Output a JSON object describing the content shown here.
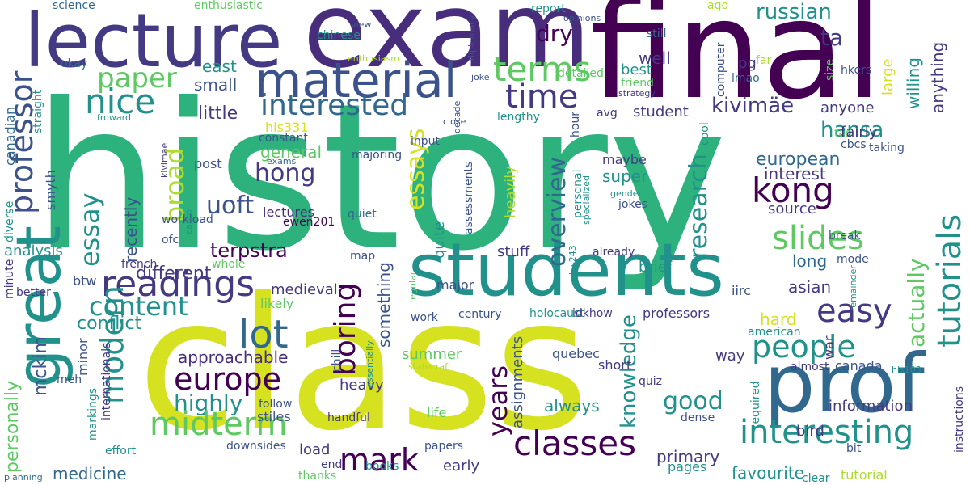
{
  "palette": {
    "dark_purple": "#440154",
    "indigo": "#3b528b",
    "slate_blue": "#31688e",
    "teal": "#21918c",
    "green": "#2db27d",
    "light_green": "#5ec962",
    "yellow_green": "#addc30",
    "yellow": "#d6e11f",
    "violet": "#472d7b",
    "navy": "#443983"
  },
  "words": {
    "history": "history",
    "class": "class",
    "final": "final",
    "exam": "exam",
    "lecture": "lecture",
    "students": "students",
    "prof": "prof",
    "great": "great",
    "material": "material",
    "professor": "professor",
    "paper": "paper",
    "nice": "nice",
    "terms": "terms",
    "time": "time",
    "interested": "interested",
    "russian": "russian",
    "ta": "ta",
    "dry": "dry",
    "hong": "hong",
    "kong": "kong",
    "slides": "slides",
    "research": "research",
    "tutorials": "tutorials",
    "kivimae_accent": "kivimäe",
    "hansa": "hansa",
    "european": "european",
    "interest": "interest",
    "readings": "readings",
    "content": "content",
    "lot": "lot",
    "europe": "europe",
    "modern": "modern",
    "boring": "boring",
    "essays": "essays",
    "essay": "essay",
    "broad": "broad",
    "uoft": "uoft",
    "overview": "overview",
    "people": "people",
    "easy": "easy",
    "actually": "actually",
    "midterm": "midterm",
    "mark": "mark",
    "classes": "classes",
    "interesting": "interesting",
    "years": "years",
    "knowledge": "knowledge",
    "good": "good",
    "highly": "highly",
    "approachable": "approachable",
    "terpstra": "terpstra",
    "conflict": "conflict",
    "mckim": "mckim",
    "personally": "personally",
    "medicine": "medicine",
    "primary": "primary",
    "favourite": "favourite",
    "tutorial": "tutorial",
    "science": "science",
    "enthusiastic": "enthusiastic",
    "report": "report",
    "opinions": "opinions",
    "ago": "ago",
    "still": "still",
    "pg": "pg",
    "hkers": "hkers",
    "okay": "okay",
    "diplomacy": "diplomacy",
    "view": "view",
    "chinese": "chinese",
    "enthusiasm": "enthusiasm",
    "east": "east",
    "detailed": "detailed",
    "computer": "computer",
    "far": "far",
    "size": "size",
    "lmao": "lmao",
    "large": "large",
    "willing": "willing",
    "anything": "anything",
    "well": "well",
    "best": "best",
    "friend": "friend",
    "strategy": "strategy",
    "joke": "joke",
    "decade": "decade",
    "straight": "straight",
    "small": "small",
    "little": "little",
    "his331": "his331",
    "student": "student",
    "avg": "avg",
    "hour": "hour",
    "cool": "cool",
    "tas": "tas",
    "cbcs": "cbcs",
    "taking": "taking",
    "fairly": "fairly",
    "anyone": "anyone",
    "froward": "froward",
    "close": "close",
    "lengthy": "lengthy",
    "canadian": "canadian",
    "constant": "constant",
    "input": "input",
    "general": "general",
    "exams": "exams",
    "majoring": "majoring",
    "post": "post",
    "super": "super",
    "maybe": "maybe",
    "kivimae": "kivimae",
    "smyth": "smyth",
    "assessments": "assessments",
    "personal": "personal",
    "specialized": "specialized",
    "gender": "gender",
    "jokes": "jokes",
    "source": "source",
    "diverse": "diverse",
    "workload": "workload",
    "canto": "canto",
    "lectures": "lectures",
    "ewen201": "ewen201",
    "quiet": "quiet",
    "quite": "quite",
    "heavily": "heavily",
    "something": "something",
    "break": "break",
    "ofc": "ofc",
    "whole": "whole",
    "analysis": "analysis",
    "french": "french",
    "recently": "recently",
    "map": "map",
    "major": "major",
    "stuff": "stuff",
    "already": "already",
    "his243": "his243",
    "brief": "brief",
    "long": "long",
    "mode": "mode",
    "different": "different",
    "medieval": "medieval",
    "minute": "minute",
    "better": "better",
    "btw": "btw",
    "likely": "likely",
    "regular": "regular",
    "iirc": "iirc",
    "asian": "asian",
    "remainder": "remainder",
    "work": "work",
    "century": "century",
    "holocaust": "holocaust",
    "idkhow": "idkhow",
    "professors": "professors",
    "hard": "hard",
    "american": "american",
    "war": "war",
    "instructions": "instructions",
    "minor": "minor",
    "internationals": "internationals",
    "essentially": "essentially",
    "chill": "chill",
    "summer": "summer",
    "assignments": "assignments",
    "statecraft": "statecraft",
    "quebec": "quebec",
    "short": "short",
    "way": "way",
    "canada": "canada",
    "almost": "almost",
    "his103": "his103",
    "meh": "meh",
    "markings": "markings",
    "heavy": "heavy",
    "always": "always",
    "quiz": "quiz",
    "follow": "follow",
    "stiles": "stiles",
    "handful": "handful",
    "life": "life",
    "dense": "dense",
    "bird": "bird",
    "information": "information",
    "bit": "bit",
    "required": "required",
    "effort": "effort",
    "downsides": "downsides",
    "load": "load",
    "early": "early",
    "books": "books",
    "papers": "papers",
    "pages": "pages",
    "end": "end",
    "thanks": "thanks",
    "planning": "planning",
    "clear": "clear"
  }
}
